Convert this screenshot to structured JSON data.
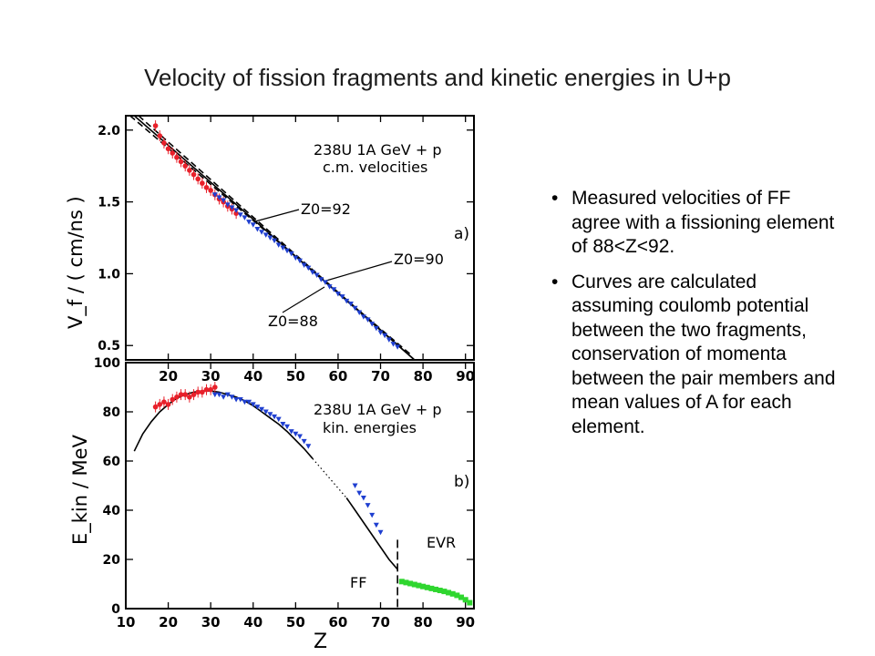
{
  "slide": {
    "title": "Velocity of fission fragments and kinetic energies in U+p",
    "bullets": [
      "Measured velocities of FF agree with a fissioning element of 88<Z<92.",
      " Curves are calculated assuming  coulomb potential between the two fragments, conservation of momenta between the pair members and mean values of A for each element."
    ]
  },
  "colors": {
    "data_red": "#e8202a",
    "data_blue": "#1f3fd0",
    "data_green": "#2fd62f",
    "curve": "#000000"
  },
  "chart_data": [
    {
      "type": "scatter",
      "panel": "a)",
      "annotation_lines": [
        "238U 1A GeV + p",
        "c.m. velocities"
      ],
      "ylabel": "V_f / ( cm/ns )",
      "xlim": [
        10,
        92
      ],
      "ylim": [
        0.4,
        2.1
      ],
      "xticks": [
        20,
        30,
        40,
        50,
        60,
        70,
        80,
        90
      ],
      "yticks": [
        0.5,
        1.0,
        1.5,
        2.0
      ],
      "ytick_labels": [
        "0.5",
        "1.0",
        "1.5",
        "2.0"
      ],
      "curve_labels": [
        "Z0=92",
        "Z0=90",
        "Z0=88"
      ],
      "series": [
        {
          "color": "red",
          "marker": "dot",
          "x": [
            17,
            18,
            19,
            20,
            21,
            22,
            23,
            24,
            25,
            26,
            27,
            28,
            29,
            30,
            31,
            32,
            33,
            34,
            35,
            36
          ],
          "y": [
            2.03,
            1.96,
            1.91,
            1.87,
            1.84,
            1.81,
            1.78,
            1.75,
            1.72,
            1.69,
            1.66,
            1.63,
            1.6,
            1.58,
            1.55,
            1.52,
            1.5,
            1.47,
            1.45,
            1.42
          ]
        },
        {
          "color": "blue",
          "marker": "triangle",
          "x": [
            31,
            32,
            33,
            34,
            35,
            36,
            37,
            38,
            39,
            40,
            41,
            42,
            43,
            44,
            45,
            46,
            47,
            48,
            49,
            50,
            51,
            52,
            53,
            54,
            55,
            56,
            57,
            58,
            59,
            60,
            61,
            62,
            63,
            64,
            65,
            66,
            67,
            68,
            69,
            70,
            71,
            72,
            73,
            74
          ],
          "y": [
            1.55,
            1.53,
            1.51,
            1.48,
            1.46,
            1.44,
            1.41,
            1.39,
            1.36,
            1.34,
            1.31,
            1.29,
            1.27,
            1.25,
            1.23,
            1.2,
            1.18,
            1.16,
            1.14,
            1.11,
            1.09,
            1.06,
            1.04,
            1.01,
            0.99,
            0.96,
            0.94,
            0.91,
            0.89,
            0.86,
            0.84,
            0.81,
            0.79,
            0.76,
            0.73,
            0.7,
            0.68,
            0.65,
            0.62,
            0.59,
            0.57,
            0.54,
            0.51,
            0.49
          ]
        }
      ],
      "curves": [
        {
          "label": "Z0=92",
          "style": "dashed",
          "x": [
            13,
            78
          ],
          "y": [
            2.15,
            0.34
          ]
        },
        {
          "label": "Z0=90",
          "style": "solid",
          "x": [
            12,
            78
          ],
          "y": [
            2.12,
            0.4
          ]
        },
        {
          "label": "Z0=88",
          "style": "dashed",
          "x": [
            11,
            77
          ],
          "y": [
            2.1,
            0.44
          ]
        }
      ]
    },
    {
      "type": "scatter",
      "panel": "b)",
      "annotation_lines": [
        "238U 1A GeV + p",
        "kin. energies"
      ],
      "xlabel": "Z",
      "ylabel": "E_kin / MeV",
      "xlim": [
        10,
        92
      ],
      "ylim": [
        0,
        100
      ],
      "xticks": [
        10,
        20,
        30,
        40,
        50,
        60,
        70,
        80,
        90
      ],
      "yticks": [
        0,
        20,
        40,
        60,
        80,
        100
      ],
      "ytick_labels": [
        "0",
        "20",
        "40",
        "60",
        "80",
        "100"
      ],
      "region_labels": [
        "EVR",
        "FF"
      ],
      "boundary_x": 74,
      "series": [
        {
          "color": "red",
          "marker": "dot",
          "x": [
            17,
            18,
            19,
            20,
            21,
            22,
            23,
            24,
            25,
            26,
            27,
            28,
            29,
            30,
            31
          ],
          "y": [
            82,
            83,
            84,
            83,
            85,
            86,
            87,
            87,
            86,
            87,
            88,
            88,
            89,
            89,
            90
          ]
        },
        {
          "color": "blue",
          "marker": "triangle",
          "x": [
            31,
            32,
            33,
            34,
            35,
            36,
            37,
            38,
            39,
            40,
            41,
            42,
            43,
            44,
            45,
            46,
            47,
            48,
            49,
            50,
            51,
            52,
            53,
            64,
            65,
            66,
            67,
            68,
            69,
            70
          ],
          "y": [
            87,
            87,
            86,
            87,
            86,
            85,
            85,
            84,
            84,
            83,
            82,
            81,
            80,
            79,
            78,
            77,
            75,
            74,
            72,
            71,
            70,
            68,
            66,
            50,
            47,
            45,
            42,
            38,
            34,
            31
          ]
        },
        {
          "color": "green",
          "marker": "square",
          "x": [
            75,
            76,
            77,
            78,
            79,
            80,
            81,
            82,
            83,
            84,
            85,
            86,
            87,
            88,
            89,
            90,
            91
          ],
          "y": [
            11,
            10.6,
            10.2,
            9.8,
            9.4,
            9.0,
            8.6,
            8.2,
            7.8,
            7.4,
            7.0,
            6.5,
            6.0,
            5.4,
            4.6,
            3.6,
            2.4
          ]
        }
      ],
      "curves": [
        {
          "style": "solid",
          "x": [
            12,
            14,
            16,
            18,
            20,
            22,
            24,
            26,
            28,
            30,
            32,
            34,
            36,
            38,
            40,
            42,
            44,
            46,
            48,
            50,
            52,
            54
          ],
          "y": [
            64,
            71,
            76,
            80,
            83,
            85.5,
            87,
            88,
            88.5,
            88.5,
            88,
            87,
            86,
            84.5,
            82.5,
            80,
            77.5,
            75,
            72,
            68.5,
            65,
            61
          ]
        },
        {
          "style": "dotted",
          "x": [
            54,
            56,
            58,
            60,
            62
          ],
          "y": [
            61,
            57,
            53,
            49,
            45
          ]
        },
        {
          "style": "solid",
          "x": [
            62,
            64,
            66,
            68,
            70,
            72,
            74
          ],
          "y": [
            45,
            40,
            35,
            30,
            25,
            20,
            16
          ]
        }
      ]
    }
  ]
}
